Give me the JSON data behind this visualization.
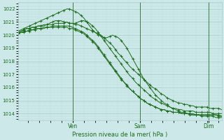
{
  "xlabel": "Pression niveau de la mer( hPa )",
  "bg_color": "#cce8e8",
  "grid_major_color": "#aacccc",
  "grid_minor_color": "#bbdddd",
  "line_color": "#1a6b1a",
  "tick_label_color": "#1a6b1a",
  "ylim": [
    1013.5,
    1022.5
  ],
  "yticks": [
    1014,
    1015,
    1016,
    1017,
    1018,
    1019,
    1020,
    1021,
    1022
  ],
  "xtick_labels": [
    "Ven",
    "Sam",
    "Dim"
  ],
  "xtick_positions": [
    0.27,
    0.6,
    0.935
  ],
  "n_points": 72,
  "series": [
    [
      1020.2,
      1020.3,
      1020.4,
      1020.5,
      1020.5,
      1020.6,
      1020.6,
      1020.7,
      1020.7,
      1020.7,
      1020.8,
      1020.8,
      1020.8,
      1020.9,
      1020.9,
      1020.9,
      1020.9,
      1021.0,
      1020.9,
      1020.9,
      1020.8,
      1020.8,
      1020.7,
      1020.6,
      1020.5,
      1020.4,
      1020.3,
      1020.2,
      1020.1,
      1020.0,
      1019.8,
      1019.6,
      1019.4,
      1019.2,
      1018.9,
      1018.6,
      1018.4,
      1018.1,
      1017.9,
      1017.6,
      1017.4,
      1017.2,
      1017.0,
      1016.8,
      1016.6,
      1016.4,
      1016.2,
      1016.0,
      1015.9,
      1015.7,
      1015.5,
      1015.4,
      1015.2,
      1015.1,
      1015.0,
      1014.9,
      1014.8,
      1014.8,
      1014.7,
      1014.7,
      1014.6,
      1014.6,
      1014.5,
      1014.5,
      1014.5,
      1014.5,
      1014.5,
      1014.4,
      1014.4,
      1014.4,
      1014.4,
      1014.3
    ],
    [
      1020.1,
      1020.2,
      1020.3,
      1020.3,
      1020.4,
      1020.4,
      1020.5,
      1020.5,
      1020.5,
      1020.6,
      1020.6,
      1020.6,
      1020.7,
      1020.7,
      1020.7,
      1020.7,
      1020.7,
      1020.7,
      1020.7,
      1020.6,
      1020.5,
      1020.4,
      1020.3,
      1020.2,
      1020.0,
      1019.8,
      1019.6,
      1019.4,
      1019.1,
      1018.8,
      1018.5,
      1018.2,
      1017.9,
      1017.6,
      1017.3,
      1017.0,
      1016.7,
      1016.4,
      1016.2,
      1015.9,
      1015.7,
      1015.5,
      1015.3,
      1015.1,
      1015.0,
      1014.8,
      1014.7,
      1014.6,
      1014.5,
      1014.4,
      1014.3,
      1014.3,
      1014.2,
      1014.2,
      1014.1,
      1014.1,
      1014.1,
      1014.0,
      1014.0,
      1014.0,
      1013.9,
      1013.9,
      1013.9,
      1013.9,
      1013.8,
      1013.8,
      1013.8,
      1013.8,
      1013.8,
      1013.7,
      1013.7,
      1013.7
    ],
    [
      1020.3,
      1020.4,
      1020.5,
      1020.6,
      1020.7,
      1020.8,
      1020.9,
      1021.0,
      1021.1,
      1021.2,
      1021.3,
      1021.4,
      1021.5,
      1021.6,
      1021.7,
      1021.8,
      1021.9,
      1022.0,
      1022.0,
      1021.9,
      1021.8,
      1021.7,
      1021.5,
      1021.3,
      1021.0,
      1020.7,
      1020.4,
      1020.2,
      1020.0,
      1019.9,
      1019.8,
      1019.8,
      1019.9,
      1020.0,
      1019.9,
      1019.8,
      1019.6,
      1019.3,
      1019.0,
      1018.6,
      1018.2,
      1017.8,
      1017.4,
      1017.0,
      1016.6,
      1016.3,
      1016.0,
      1015.7,
      1015.4,
      1015.2,
      1015.0,
      1014.8,
      1014.7,
      1014.5,
      1014.4,
      1014.3,
      1014.2,
      1014.1,
      1014.1,
      1014.0,
      1014.0,
      1014.0,
      1013.9,
      1013.9,
      1013.9,
      1013.9,
      1013.9,
      1013.9,
      1013.9,
      1013.9,
      1013.8,
      1013.8
    ],
    [
      1020.2,
      1020.3,
      1020.4,
      1020.5,
      1020.5,
      1020.6,
      1020.6,
      1020.7,
      1020.7,
      1020.8,
      1020.8,
      1020.9,
      1021.0,
      1021.1,
      1021.1,
      1021.1,
      1021.0,
      1021.0,
      1020.9,
      1020.9,
      1020.9,
      1021.0,
      1021.1,
      1021.1,
      1021.0,
      1020.9,
      1020.7,
      1020.5,
      1020.2,
      1019.9,
      1019.6,
      1019.3,
      1019.0,
      1018.7,
      1018.4,
      1018.1,
      1017.8,
      1017.5,
      1017.2,
      1016.9,
      1016.7,
      1016.4,
      1016.2,
      1016.0,
      1015.8,
      1015.6,
      1015.4,
      1015.2,
      1015.1,
      1014.9,
      1014.8,
      1014.7,
      1014.6,
      1014.5,
      1014.4,
      1014.4,
      1014.3,
      1014.3,
      1014.2,
      1014.2,
      1014.2,
      1014.2,
      1014.1,
      1014.1,
      1014.1,
      1014.1,
      1014.1,
      1014.1,
      1014.0,
      1014.0,
      1014.0,
      1014.0
    ],
    [
      1020.1,
      1020.2,
      1020.2,
      1020.3,
      1020.3,
      1020.4,
      1020.4,
      1020.5,
      1020.5,
      1020.5,
      1020.6,
      1020.6,
      1020.6,
      1020.6,
      1020.6,
      1020.6,
      1020.6,
      1020.6,
      1020.5,
      1020.5,
      1020.4,
      1020.3,
      1020.2,
      1020.1,
      1019.9,
      1019.7,
      1019.5,
      1019.3,
      1019.0,
      1018.7,
      1018.4,
      1018.1,
      1017.8,
      1017.5,
      1017.2,
      1016.9,
      1016.6,
      1016.4,
      1016.1,
      1015.9,
      1015.7,
      1015.5,
      1015.3,
      1015.1,
      1015.0,
      1014.8,
      1014.7,
      1014.6,
      1014.5,
      1014.4,
      1014.3,
      1014.3,
      1014.2,
      1014.2,
      1014.1,
      1014.1,
      1014.1,
      1014.0,
      1014.0,
      1014.0,
      1014.0,
      1013.9,
      1013.9,
      1013.9,
      1013.9,
      1013.9,
      1013.9,
      1013.9,
      1013.9,
      1013.9,
      1013.9,
      1013.8
    ]
  ]
}
